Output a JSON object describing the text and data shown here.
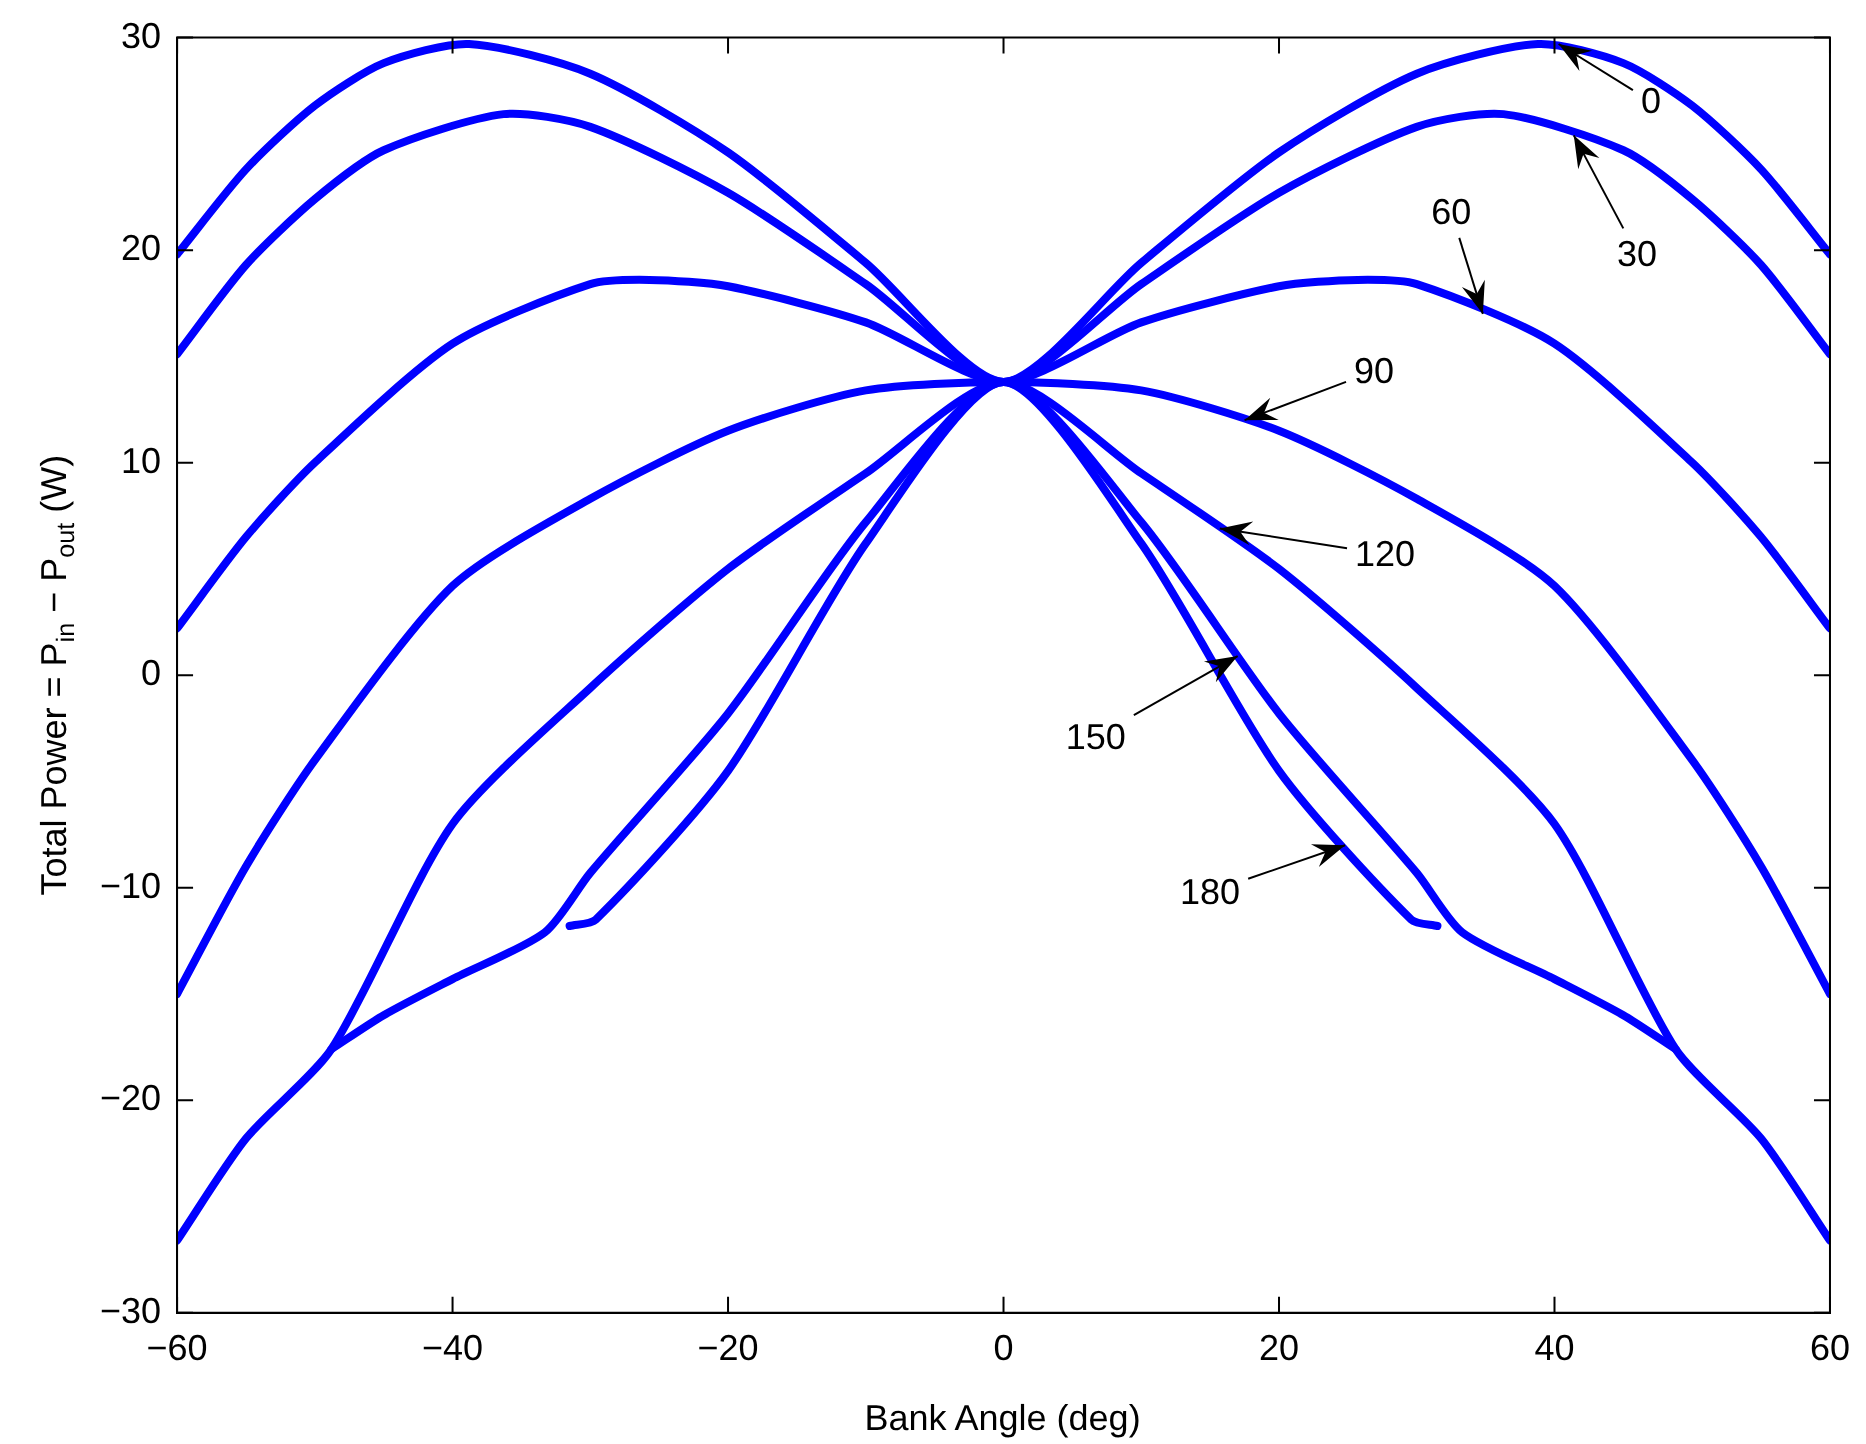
{
  "chart_data": {
    "type": "line",
    "xlabel": "Bank Angle (deg)",
    "ylabel": "Total Power = P$_{in}$ − P$_{out}$ (W)",
    "xlim": [
      -60,
      60
    ],
    "ylim": [
      -30,
      30
    ],
    "xticks": [
      {
        "value": -60,
        "label": "−60"
      },
      {
        "value": -40,
        "label": "−40"
      },
      {
        "value": -20,
        "label": "−20"
      },
      0,
      20,
      40,
      60
    ],
    "yticks": [
      {
        "value": -30,
        "label": "−30"
      },
      {
        "value": -20,
        "label": "−20"
      },
      {
        "value": -10,
        "label": "−10"
      },
      0,
      10,
      20,
      30
    ],
    "grid": false,
    "legend": false,
    "marker": "none",
    "line_style": "solid",
    "series": [
      {
        "color": "#0000ff",
        "x": [
          -60,
          -55,
          -50,
          -45,
          -38.8,
          -30,
          -20,
          -10,
          0,
          10,
          20,
          30,
          38.8,
          45,
          50,
          55,
          60
        ],
        "values": [
          19.8,
          23.8,
          26.8,
          28.8,
          29.7,
          28.3,
          24.6,
          19.4,
          13.8,
          19.4,
          24.6,
          28.3,
          29.7,
          28.8,
          26.8,
          23.8,
          19.8
        ]
      },
      {
        "color": "#0000ff",
        "x": [
          -60,
          -55,
          -50,
          -45,
          -36.3,
          -30,
          -20,
          -10,
          0,
          10,
          20,
          30,
          36.3,
          45,
          50,
          55,
          60
        ],
        "values": [
          15.1,
          19.3,
          22.4,
          24.7,
          26.4,
          25.8,
          22.7,
          18.4,
          13.8,
          18.4,
          22.7,
          25.8,
          26.4,
          24.7,
          22.4,
          19.3,
          15.1
        ]
      },
      {
        "color": "#0000ff",
        "x": [
          -60,
          -55,
          -50,
          -40,
          -30,
          -25.7,
          -20,
          -10,
          0,
          10,
          20,
          25.7,
          30,
          40,
          50,
          55,
          60
        ],
        "values": [
          2.2,
          6.5,
          10.0,
          15.6,
          18.4,
          18.6,
          18.3,
          16.6,
          13.8,
          16.6,
          18.3,
          18.6,
          18.4,
          15.6,
          10.0,
          6.5,
          2.2
        ]
      },
      {
        "color": "#0000ff",
        "x": [
          -60,
          -55,
          -50,
          -40,
          -30,
          -20,
          -10,
          0,
          10,
          20,
          30,
          40,
          50,
          55,
          60
        ],
        "values": [
          -15,
          -9,
          -4.0,
          4.2,
          8.3,
          11.5,
          13.4,
          13.8,
          13.4,
          11.5,
          8.3,
          4.2,
          -4.0,
          -9,
          -15
        ]
      },
      {
        "color": "#0000ff",
        "x": [
          -60,
          -55,
          -48.8,
          -40,
          -30,
          -20,
          -10,
          0,
          10,
          20,
          30,
          40,
          48.8,
          55,
          60
        ],
        "values": [
          -26.6,
          -21.8,
          -17.6,
          -7.0,
          -0.6,
          5.0,
          9.5,
          13.8,
          9.5,
          5.0,
          -0.6,
          -7.0,
          -17.6,
          -21.8,
          -26.6
        ]
      },
      {
        "color": "#0000ff",
        "x": [
          -48.8,
          -45,
          -40,
          -33.3,
          -30,
          -20,
          -10,
          0,
          10,
          20,
          30,
          33.3,
          40,
          45,
          48.8
        ],
        "values": [
          -17.6,
          -16.0,
          -14.3,
          -12.1,
          -9.3,
          -1.8,
          7.2,
          13.8,
          7.2,
          -1.8,
          -9.3,
          -12.1,
          -14.3,
          -16.0,
          -17.6
        ]
      },
      {
        "color": "#0000ff",
        "x": [
          -31.5,
          -29.6,
          -20,
          -10,
          0,
          10,
          20,
          29.6,
          31.5
        ],
        "values": [
          -11.8,
          -11.5,
          -4.5,
          6.2,
          13.8,
          6.2,
          -4.5,
          -11.5,
          -11.8
        ]
      }
    ],
    "annotations": [
      {
        "text": "0",
        "x": 40.3,
        "y": 29.7
      },
      {
        "text": "30",
        "x": 41.4,
        "y": 25.4
      },
      {
        "text": "60",
        "x": 34.8,
        "y": 17.0
      },
      {
        "text": "90",
        "x": 17.5,
        "y": 12.0
      },
      {
        "text": "120",
        "x": 15.7,
        "y": 6.9
      },
      {
        "text": "150",
        "x": 17.0,
        "y": 0.9
      },
      {
        "text": "180",
        "x": 24.8,
        "y": -8.0
      }
    ]
  }
}
